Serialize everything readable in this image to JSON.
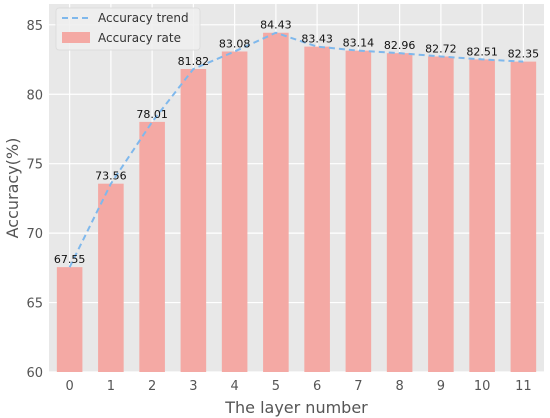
{
  "chart_data": {
    "type": "bar",
    "xlabel": "The layer number",
    "ylabel": "Accuracy(%)",
    "categories": [
      "0",
      "1",
      "2",
      "3",
      "4",
      "5",
      "6",
      "7",
      "8",
      "9",
      "10",
      "11"
    ],
    "ylim": [
      60,
      86.5
    ],
    "yticks": [
      60,
      65,
      70,
      75,
      80,
      85
    ],
    "series": [
      {
        "name": "Accuracy rate",
        "kind": "bar",
        "color": "#f4a9a4",
        "values": [
          67.55,
          73.56,
          78.01,
          81.82,
          83.08,
          84.43,
          83.43,
          83.14,
          82.96,
          82.72,
          82.51,
          82.35
        ]
      },
      {
        "name": "Accuracy trend",
        "kind": "line",
        "style": "dashed",
        "color": "#7fb8ec",
        "values": [
          67.55,
          73.56,
          78.01,
          81.82,
          83.08,
          84.43,
          83.43,
          83.14,
          82.96,
          82.72,
          82.51,
          82.35
        ]
      }
    ],
    "data_labels": [
      "67.55",
      "73.56",
      "78.01",
      "81.82",
      "83.08",
      "84.43",
      "83.43",
      "83.14",
      "82.96",
      "82.72",
      "82.51",
      "82.35"
    ],
    "grid": true,
    "background": "#e8e8e8",
    "legend_position": "top-left"
  }
}
